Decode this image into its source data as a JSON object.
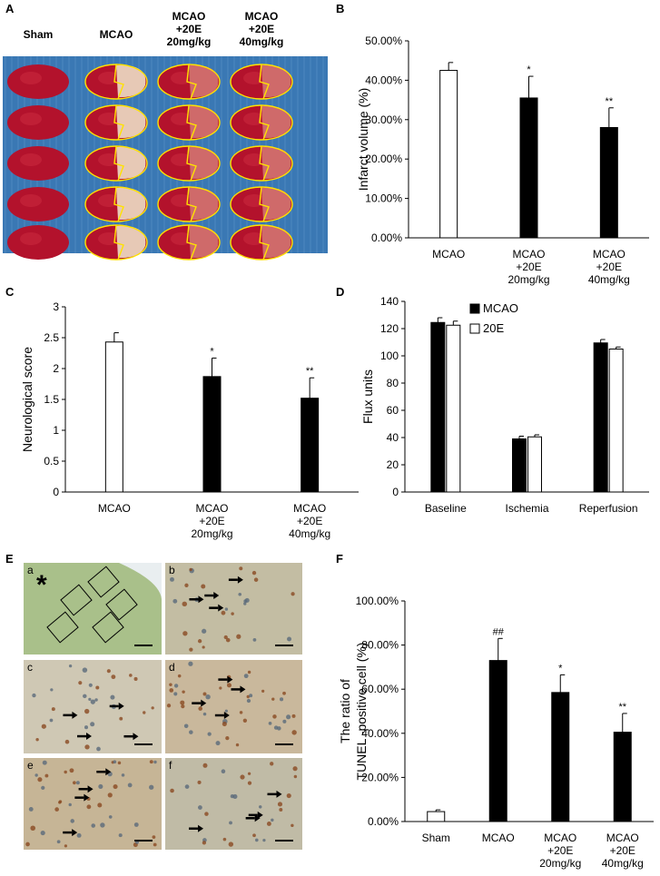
{
  "panel_labels": [
    "A",
    "B",
    "C",
    "D",
    "E",
    "F"
  ],
  "photo_panel": {
    "columns": [
      "Sham",
      "MCAO",
      "MCAO\n+20E\n20mg/kg",
      "MCAO\n+20E\n40mg/kg"
    ]
  },
  "micrograph_panel": {
    "labels": [
      "a",
      "b",
      "c",
      "d",
      "e",
      "f"
    ],
    "marker": "*"
  },
  "chart_data": [
    {
      "type": "bar",
      "ylabel": "Infarct volume (%)",
      "categories": [
        "MCAO",
        "MCAO\n+20E\n20mg/kg",
        "MCAO\n+20E\n40mg/kg"
      ],
      "values": [
        42.5,
        35.5,
        28
      ],
      "errors": [
        2,
        5.5,
        5
      ],
      "colors": [
        "#ffffff",
        "#000000",
        "#000000"
      ],
      "significance": [
        null,
        "*",
        "**"
      ],
      "ylim": [
        0,
        50
      ],
      "yticks": [
        {
          "value": 0,
          "label": "0.00%"
        },
        {
          "value": 10,
          "label": "10.00%"
        },
        {
          "value": 20,
          "label": "20.00%"
        },
        {
          "value": 30,
          "label": "30.00%"
        },
        {
          "value": 40,
          "label": "40.00%"
        },
        {
          "value": 50,
          "label": "50.00%"
        }
      ]
    },
    {
      "type": "bar",
      "ylabel": "Neurological score",
      "categories": [
        "MCAO",
        "MCAO\n+20E\n20mg/kg",
        "MCAO\n+20E\n40mg/kg"
      ],
      "values": [
        2.43,
        1.87,
        1.52
      ],
      "errors": [
        0.15,
        0.3,
        0.33
      ],
      "colors": [
        "#ffffff",
        "#000000",
        "#000000"
      ],
      "significance": [
        null,
        "*",
        "**"
      ],
      "ylim": [
        0,
        3
      ],
      "yticks": [
        0,
        0.5,
        1,
        1.5,
        2,
        2.5,
        3
      ]
    },
    {
      "type": "grouped_bar",
      "ylabel": "Flux units",
      "categories": [
        "Baseline",
        "Ischemia",
        "Reperfusion"
      ],
      "series": [
        {
          "name": "MCAO",
          "color": "#000000",
          "values": [
            124.5,
            39,
            109.5
          ],
          "errors": [
            3.5,
            2,
            2.5
          ]
        },
        {
          "name": "20E",
          "color": "#ffffff",
          "values": [
            122.5,
            40.5,
            105
          ],
          "errors": [
            3,
            1.5,
            1.5
          ]
        }
      ],
      "legend": "top-left",
      "ylim": [
        0,
        140
      ],
      "yticks": [
        0,
        20,
        40,
        60,
        80,
        100,
        120,
        140
      ]
    },
    {
      "type": "bar",
      "ylabel": "The ratio of\nTUNEL -positive cell (%)",
      "categories": [
        "Sham",
        "MCAO",
        "MCAO\n+20E\n20mg/kg",
        "MCAO\n+20E\n40mg/kg"
      ],
      "values": [
        4.5,
        73,
        58.5,
        40.5
      ],
      "errors": [
        0.8,
        10,
        8,
        8.5
      ],
      "colors": [
        "#ffffff",
        "#000000",
        "#000000",
        "#000000"
      ],
      "significance": [
        null,
        "##",
        "*",
        "**"
      ],
      "ylim": [
        0,
        100
      ],
      "yticks": [
        {
          "value": 0,
          "label": "0.00%"
        },
        {
          "value": 20,
          "label": "20.00%"
        },
        {
          "value": 40,
          "label": "40.00%"
        },
        {
          "value": 60,
          "label": "60.00%"
        },
        {
          "value": 80,
          "label": "80.00%"
        },
        {
          "value": 100,
          "label": "100.00%"
        }
      ]
    }
  ]
}
